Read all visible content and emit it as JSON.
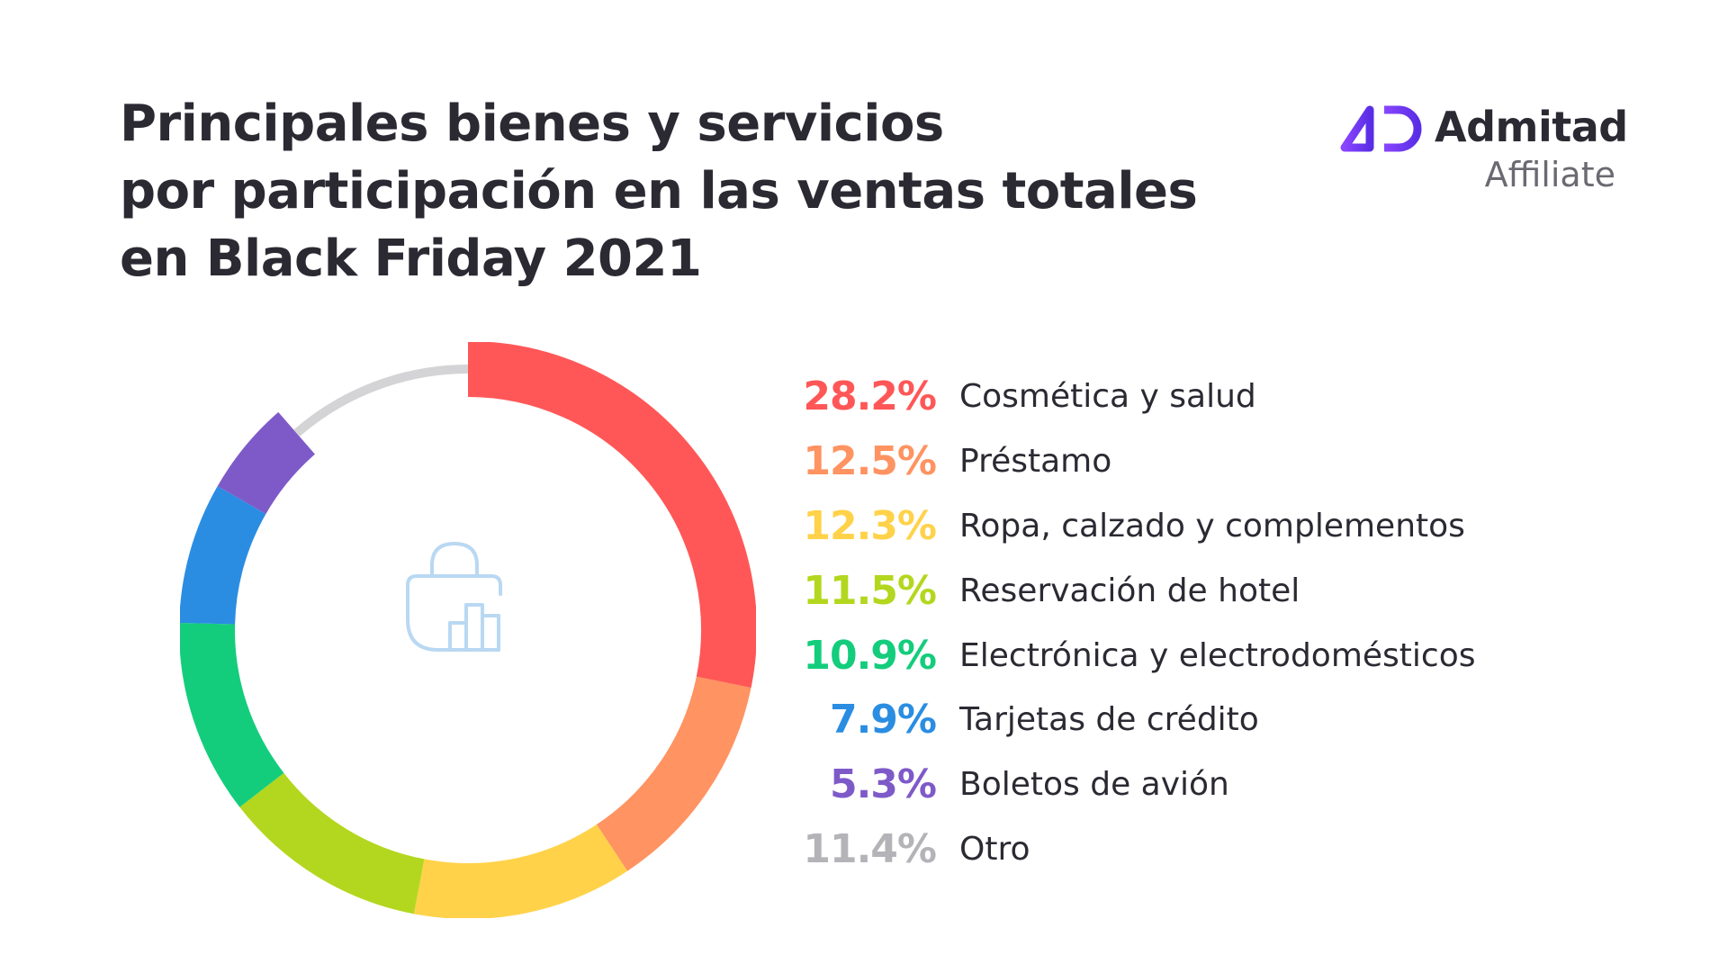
{
  "title": {
    "line1": "Principales bienes y servicios",
    "line2": "por participación en las ventas totales",
    "line3": "en Black Friday 2021"
  },
  "brand": {
    "name": "Admitad",
    "subtitle": "Affiliate",
    "logo_icon": "admitad-ad-logo-icon",
    "logo_color_start": "#8a45ff",
    "logo_color_end": "#5a2ee6"
  },
  "center_icon": "shopping-bag-chart-icon",
  "colors": {
    "track": "#d4d4d6",
    "center_icon": "#b9d8f2"
  },
  "chart_data": {
    "type": "pie",
    "title": "Principales bienes y servicios por participación en las ventas totales en Black Friday 2021",
    "unit": "%",
    "start_angle_deg": 0,
    "direction": "clockwise",
    "segments": [
      {
        "label": "Cosmética y salud",
        "value": 28.2,
        "display": "28.2%",
        "color": "#ff5757"
      },
      {
        "label": "Préstamo",
        "value": 12.5,
        "display": "12.5%",
        "color": "#ff9361"
      },
      {
        "label": "Ropa, calzado y complementos",
        "value": 12.3,
        "display": "12.3%",
        "color": "#ffd24a"
      },
      {
        "label": "Reservación de hotel",
        "value": 11.5,
        "display": "11.5%",
        "color": "#b3d71e"
      },
      {
        "label": "Electrónica y electrodomésticos",
        "value": 10.9,
        "display": "10.9%",
        "color": "#14cd7c"
      },
      {
        "label": "Tarjetas de crédito",
        "value": 7.9,
        "display": "7.9%",
        "color": "#2a8de2"
      },
      {
        "label": "Boletos de avión",
        "value": 5.3,
        "display": "5.3%",
        "color": "#7e5ac9"
      },
      {
        "label": "Otro",
        "value": 11.4,
        "display": "11.4%",
        "color": "#b4b4b8",
        "style": "thin-track"
      }
    ]
  }
}
